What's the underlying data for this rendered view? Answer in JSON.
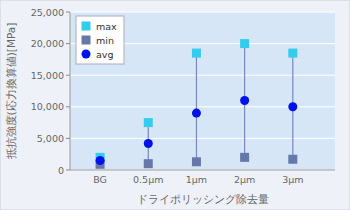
{
  "chart_data": {
    "type": "scatter",
    "x_label": "ドライポリッシング除去量",
    "y_label": "抵抗強度(応力換算値)[MPa]",
    "categories": [
      "BG",
      "0.5μm",
      "1μm",
      "2μm",
      "3μm"
    ],
    "series": [
      {
        "name": "max",
        "color": "#33ccee",
        "marker": "square",
        "values": [
          2000,
          7500,
          18500,
          20000,
          18500
        ]
      },
      {
        "name": "min",
        "color": "#6677aa",
        "marker": "square",
        "values": [
          900,
          1000,
          1300,
          2000,
          1700
        ]
      },
      {
        "name": "avg",
        "color": "#0011ee",
        "marker": "circle",
        "values": [
          1500,
          4200,
          9000,
          11000,
          10000
        ]
      }
    ],
    "ylim": [
      0,
      25000
    ],
    "yticks": [
      0,
      {
        "value": 5000,
        "label": "5,000"
      },
      {
        "value": 10000,
        "label": "10,000"
      },
      {
        "value": 15000,
        "label": "15,000"
      },
      {
        "value": 20000,
        "label": "20,000"
      },
      {
        "value": 25000,
        "label": "25,000"
      }
    ],
    "grid": true,
    "legend": "upper left"
  }
}
